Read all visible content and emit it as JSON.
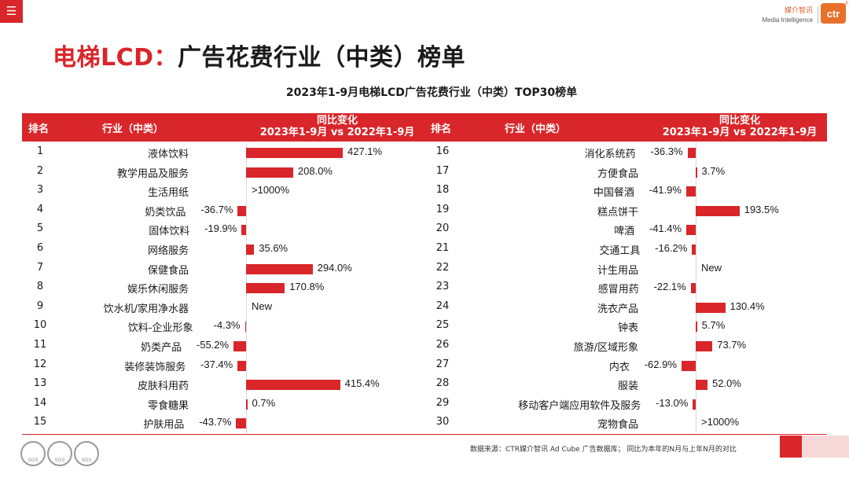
{
  "header": {
    "menu_icon": "hamburger-icon",
    "brand_cn": "媒介智讯",
    "brand_en": "Media Intelligence",
    "logo_text": "ctr",
    "logo_mark": "®"
  },
  "title": {
    "highlight": "电梯LCD：",
    "rest": "广告花费行业（中类）榜单"
  },
  "columns": {
    "rank": "排名",
    "industry": "行业（中类）",
    "change_line1": "同比变化",
    "change_line2": "2023年1-9月 vs 2022年1-9月"
  },
  "footer": {
    "source": "数据来源：CTR媒介智讯 Ad Cube 广告数据库；  同比为本年的N月与上年N月的对比",
    "seal_label": "SGS"
  },
  "colors": {
    "accent": "#d9262a",
    "brand": "#e8702a"
  },
  "chart_data": {
    "type": "bar",
    "orientation": "horizontal",
    "title": "2023年1-9月电梯LCD广告花费行业（中类）TOP30榜单",
    "xlabel": "同比变化",
    "unit": "%",
    "rows": [
      {
        "rank": 1,
        "industry": "液体饮料",
        "value": 427.1,
        "label": "427.1%"
      },
      {
        "rank": 2,
        "industry": "教学用品及服务",
        "value": 208.0,
        "label": "208.0%"
      },
      {
        "rank": 3,
        "industry": "生活用纸",
        "value": null,
        "label": ">1000%"
      },
      {
        "rank": 4,
        "industry": "奶类饮品",
        "value": -36.7,
        "label": "-36.7%"
      },
      {
        "rank": 5,
        "industry": "固体饮料",
        "value": -19.9,
        "label": "-19.9%"
      },
      {
        "rank": 6,
        "industry": "网络服务",
        "value": 35.6,
        "label": "35.6%"
      },
      {
        "rank": 7,
        "industry": "保健食品",
        "value": 294.0,
        "label": "294.0%"
      },
      {
        "rank": 8,
        "industry": "娱乐休闲服务",
        "value": 170.8,
        "label": "170.8%"
      },
      {
        "rank": 9,
        "industry": "饮水机/家用净水器",
        "value": null,
        "label": "New"
      },
      {
        "rank": 10,
        "industry": "饮料-企业形象",
        "value": -4.3,
        "label": "-4.3%"
      },
      {
        "rank": 11,
        "industry": "奶类产品",
        "value": -55.2,
        "label": "-55.2%"
      },
      {
        "rank": 12,
        "industry": "装修装饰服务",
        "value": -37.4,
        "label": "-37.4%"
      },
      {
        "rank": 13,
        "industry": "皮肤科用药",
        "value": 415.4,
        "label": "415.4%"
      },
      {
        "rank": 14,
        "industry": "零食糖果",
        "value": 0.7,
        "label": "0.7%"
      },
      {
        "rank": 15,
        "industry": "护肤用品",
        "value": -43.7,
        "label": "-43.7%"
      },
      {
        "rank": 16,
        "industry": "消化系统药",
        "value": -36.3,
        "label": "-36.3%"
      },
      {
        "rank": 17,
        "industry": "方便食品",
        "value": 3.7,
        "label": "3.7%"
      },
      {
        "rank": 18,
        "industry": "中国餐酒",
        "value": -41.9,
        "label": "-41.9%"
      },
      {
        "rank": 19,
        "industry": "糕点饼干",
        "value": 193.5,
        "label": "193.5%"
      },
      {
        "rank": 20,
        "industry": "啤酒",
        "value": -41.4,
        "label": "-41.4%"
      },
      {
        "rank": 21,
        "industry": "交通工具",
        "value": -16.2,
        "label": "-16.2%"
      },
      {
        "rank": 22,
        "industry": "计生用品",
        "value": null,
        "label": "New"
      },
      {
        "rank": 23,
        "industry": "感冒用药",
        "value": -22.1,
        "label": "-22.1%"
      },
      {
        "rank": 24,
        "industry": "洗衣产品",
        "value": 130.4,
        "label": "130.4%"
      },
      {
        "rank": 25,
        "industry": "钟表",
        "value": 5.7,
        "label": "5.7%"
      },
      {
        "rank": 26,
        "industry": "旅游/区域形象",
        "value": 73.7,
        "label": "73.7%"
      },
      {
        "rank": 27,
        "industry": "内衣",
        "value": -62.9,
        "label": "-62.9%"
      },
      {
        "rank": 28,
        "industry": "服装",
        "value": 52.0,
        "label": "52.0%"
      },
      {
        "rank": 29,
        "industry": "移动客户端应用软件及服务",
        "value": -13.0,
        "label": "-13.0%"
      },
      {
        "rank": 30,
        "industry": "宠物食品",
        "value": null,
        "label": ">1000%"
      }
    ]
  }
}
